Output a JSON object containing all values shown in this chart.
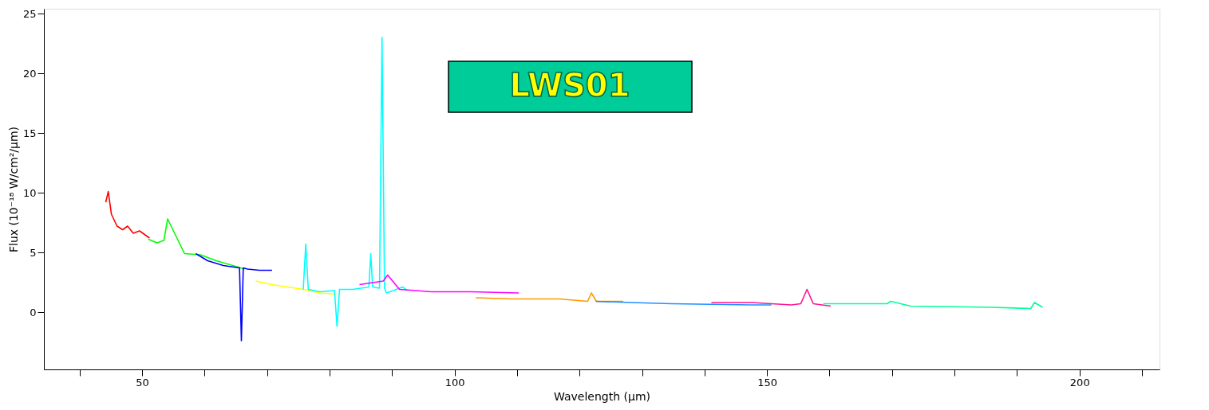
{
  "chart_data": {
    "type": "line",
    "xlabel": "Wavelength (μm)",
    "ylabel": "Flux (10⁻¹⁸ W/cm²/μm)",
    "annotations": [
      "LWS01"
    ],
    "xlim": [
      34.3,
      212.8
    ],
    "ylim": [
      -4.8,
      25.4
    ],
    "xticks": [
      {
        "value": 40,
        "label": null
      },
      50,
      {
        "value": 60,
        "label": null
      },
      {
        "value": 70,
        "label": null
      },
      {
        "value": 80,
        "label": null
      },
      {
        "value": 90,
        "label": null
      },
      100,
      {
        "value": 110,
        "label": null
      },
      {
        "value": 120,
        "label": null
      },
      {
        "value": 130,
        "label": null
      },
      {
        "value": 140,
        "label": null
      },
      150,
      {
        "value": 160,
        "label": null
      },
      {
        "value": 170,
        "label": null
      },
      {
        "value": 180,
        "label": null
      },
      {
        "value": 190,
        "label": null
      },
      200,
      {
        "value": 210,
        "label": null
      }
    ],
    "yticks": [
      0,
      5,
      10,
      15,
      20,
      25
    ],
    "grid": false,
    "legend": false,
    "series": [
      {
        "color": "#ff0000",
        "x": [
          44.2,
          44.6,
          45.1,
          46.0,
          46.9,
          47.7,
          48.6,
          49.6,
          51.2
        ],
        "values": [
          9.2,
          10.1,
          8.2,
          7.2,
          6.9,
          7.2,
          6.6,
          6.8,
          6.2
        ]
      },
      {
        "color": "#00ff00",
        "x": [
          51.0,
          52.4,
          53.5,
          54.1,
          56.8,
          59.3,
          61.9,
          64.5,
          66.4
        ],
        "values": [
          6.1,
          5.8,
          6.0,
          7.8,
          4.9,
          4.8,
          4.3,
          3.9,
          3.6
        ]
      },
      {
        "color": "#0000ff",
        "x": [
          58.6,
          60.5,
          63.0,
          65.6,
          65.9,
          66.2,
          66.9,
          68.8,
          70.8
        ],
        "values": [
          4.9,
          4.3,
          3.9,
          3.7,
          -2.4,
          3.7,
          3.6,
          3.5,
          3.5
        ]
      },
      {
        "color": "#ffff00",
        "x": [
          68.2,
          70.8,
          73.3,
          75.9,
          78.5,
          81.1
        ],
        "values": [
          2.6,
          2.3,
          2.1,
          1.9,
          1.6,
          1.5
        ]
      },
      {
        "color": "#00ffff",
        "x": [
          75.8,
          76.2,
          76.6,
          78.5,
          80.8,
          81.2,
          81.6,
          83.7,
          86.3,
          86.6,
          86.9,
          88.0,
          88.4,
          88.8,
          89.1,
          90.2,
          91.7,
          92.5
        ],
        "values": [
          1.9,
          5.7,
          1.9,
          1.7,
          1.8,
          -1.2,
          1.9,
          1.9,
          2.1,
          4.9,
          2.1,
          2.0,
          23.0,
          2.0,
          1.6,
          1.8,
          2.1,
          1.8
        ]
      },
      {
        "color": "#ff00ff",
        "x": [
          84.8,
          88.6,
          89.3,
          91.2,
          96.3,
          102.7,
          110.3
        ],
        "values": [
          2.3,
          2.6,
          3.1,
          1.9,
          1.7,
          1.7,
          1.6
        ]
      },
      {
        "color": "#ff9900",
        "x": [
          103.4,
          109.1,
          116.8,
          121.3,
          121.9,
          122.7,
          127.0
        ],
        "values": [
          1.2,
          1.1,
          1.1,
          0.9,
          1.6,
          0.9,
          0.9
        ]
      },
      {
        "color": "#1e90ff",
        "x": [
          122.6,
          128.3,
          134.7,
          147.5,
          150.7
        ],
        "values": [
          0.9,
          0.8,
          0.7,
          0.6,
          0.6
        ]
      },
      {
        "color": "#ff1493",
        "x": [
          141.1,
          147.5,
          153.9,
          155.4,
          156.4,
          157.4,
          160.2
        ],
        "values": [
          0.8,
          0.8,
          0.6,
          0.7,
          1.9,
          0.7,
          0.5
        ]
      },
      {
        "color": "#00ff99",
        "x": [
          159.0,
          169.2,
          169.8,
          173.0,
          185.8,
          192.2,
          192.8,
          194.1
        ],
        "values": [
          0.7,
          0.7,
          0.9,
          0.5,
          0.4,
          0.3,
          0.8,
          0.4
        ]
      }
    ]
  }
}
